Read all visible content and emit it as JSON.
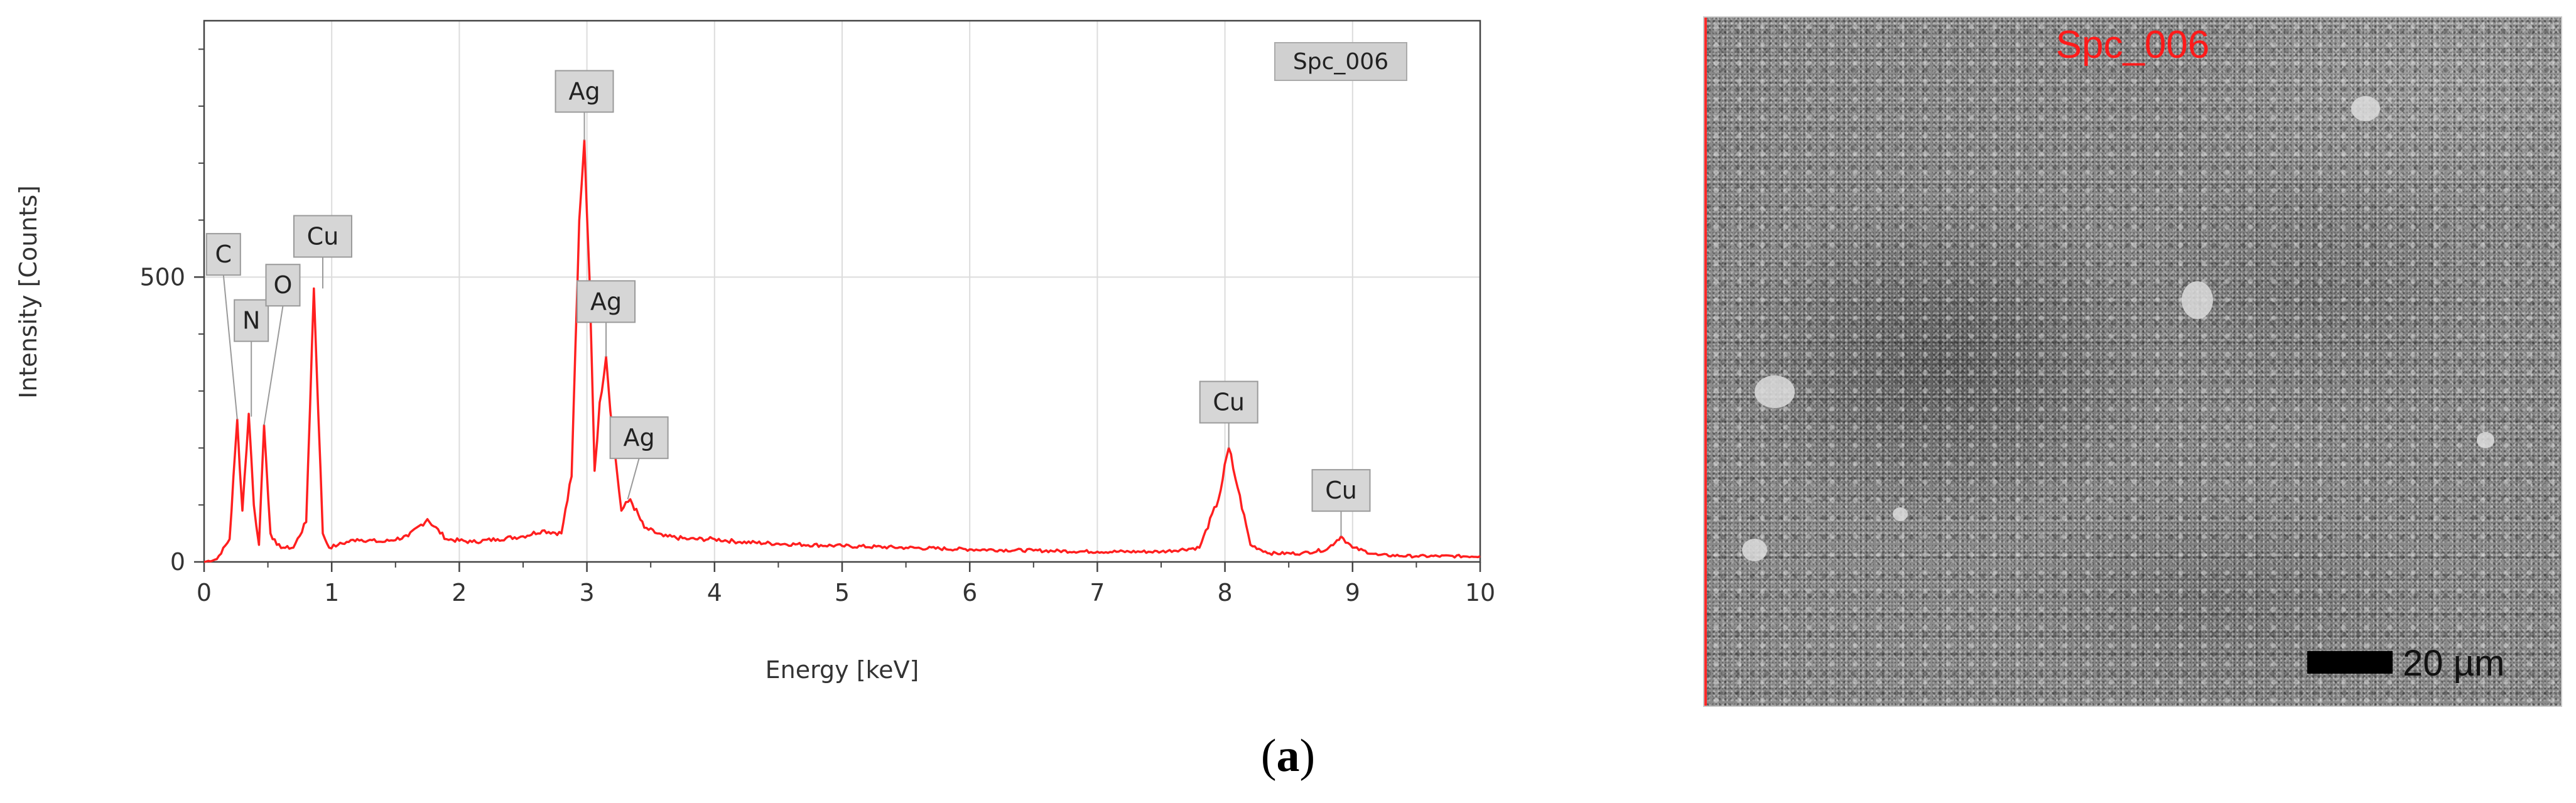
{
  "chart_data": {
    "type": "line",
    "xlabel": "Energy [keV]",
    "ylabel": "Intensity [Counts]",
    "xlim": [
      0,
      10
    ],
    "ylim": [
      0,
      950
    ],
    "x_ticks": [
      "0",
      "1",
      "2",
      "3",
      "4",
      "5",
      "6",
      "7",
      "8",
      "9",
      "10"
    ],
    "y_ticks": [
      "0",
      "500"
    ],
    "y_tick_values": [
      0,
      500
    ],
    "grid": true,
    "legend_box": "Spc_006",
    "series": [
      {
        "color": "#ff1f1f",
        "x": [
          0.0,
          0.1,
          0.2,
          0.26,
          0.3,
          0.35,
          0.39,
          0.43,
          0.47,
          0.52,
          0.57,
          0.62,
          0.7,
          0.8,
          0.86,
          0.93,
          0.98,
          1.05,
          1.2,
          1.4,
          1.6,
          1.75,
          1.9,
          2.1,
          2.3,
          2.5,
          2.65,
          2.8,
          2.88,
          2.94,
          2.98,
          3.02,
          3.06,
          3.1,
          3.15,
          3.2,
          3.27,
          3.34,
          3.45,
          3.6,
          3.8,
          4.0,
          4.2,
          4.5,
          5.0,
          5.5,
          6.0,
          6.5,
          7.0,
          7.5,
          7.8,
          7.95,
          8.03,
          8.1,
          8.2,
          8.35,
          8.6,
          8.8,
          8.91,
          9.0,
          9.2,
          9.5,
          10.0
        ],
        "y": [
          0,
          5,
          40,
          250,
          90,
          260,
          100,
          30,
          240,
          50,
          30,
          25,
          25,
          70,
          480,
          50,
          25,
          30,
          40,
          35,
          45,
          75,
          40,
          35,
          40,
          45,
          55,
          50,
          150,
          600,
          740,
          500,
          160,
          280,
          360,
          230,
          90,
          110,
          60,
          45,
          40,
          40,
          35,
          32,
          28,
          25,
          22,
          20,
          18,
          18,
          25,
          110,
          200,
          130,
          30,
          15,
          15,
          22,
          45,
          25,
          12,
          10,
          10
        ]
      }
    ],
    "annotations": [
      {
        "text": "C",
        "x": 0.26,
        "y": 250
      },
      {
        "text": "N",
        "x": 0.37,
        "y": 255
      },
      {
        "text": "O",
        "x": 0.47,
        "y": 240
      },
      {
        "text": "Cu",
        "x": 0.93,
        "y": 480
      },
      {
        "text": "Ag",
        "x": 2.98,
        "y": 740
      },
      {
        "text": "Ag",
        "x": 3.15,
        "y": 360
      },
      {
        "text": "Ag",
        "x": 3.32,
        "y": 110
      },
      {
        "text": "Cu",
        "x": 8.03,
        "y": 200
      },
      {
        "text": "Cu",
        "x": 8.91,
        "y": 45
      }
    ]
  },
  "sem_image": {
    "label": "Spc_006",
    "scale_bar_text": "20 µm",
    "label_color": "#ff1a1a"
  },
  "caption": {
    "open": "(",
    "letter": "a",
    "close": ")"
  }
}
